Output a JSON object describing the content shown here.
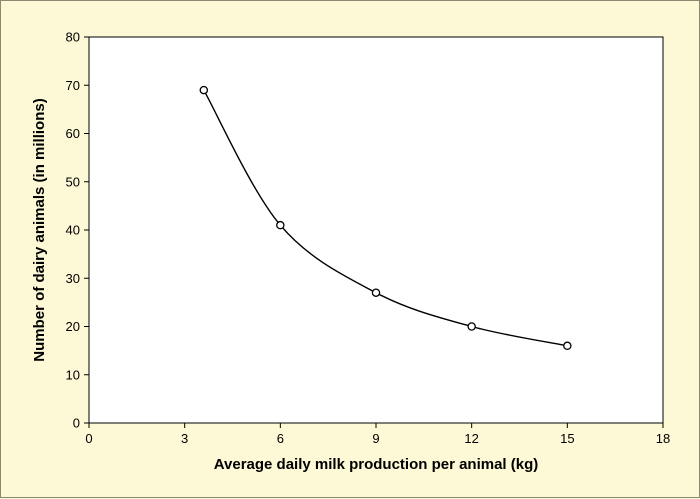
{
  "chart_data": {
    "type": "scatter",
    "title": "",
    "xlabel": "Average daily milk production per animal (kg)",
    "ylabel": "Number of dairy animals (in millions)",
    "xlim": [
      0,
      18
    ],
    "ylim": [
      0,
      80
    ],
    "x_ticks": [
      0,
      3,
      6,
      9,
      12,
      15,
      18
    ],
    "y_ticks": [
      0,
      10,
      20,
      30,
      40,
      50,
      60,
      70,
      80
    ],
    "grid": false,
    "legend": "none",
    "series": [
      {
        "x": [
          3.6,
          6,
          9,
          12,
          15
        ],
        "y": [
          69,
          41,
          27,
          20,
          16
        ],
        "marker": "open-circle",
        "trendline": "smooth-curve"
      }
    ],
    "colors": {
      "background": "#fdf8d5",
      "plot_background": "#ffffff",
      "ink": "#000000"
    }
  }
}
